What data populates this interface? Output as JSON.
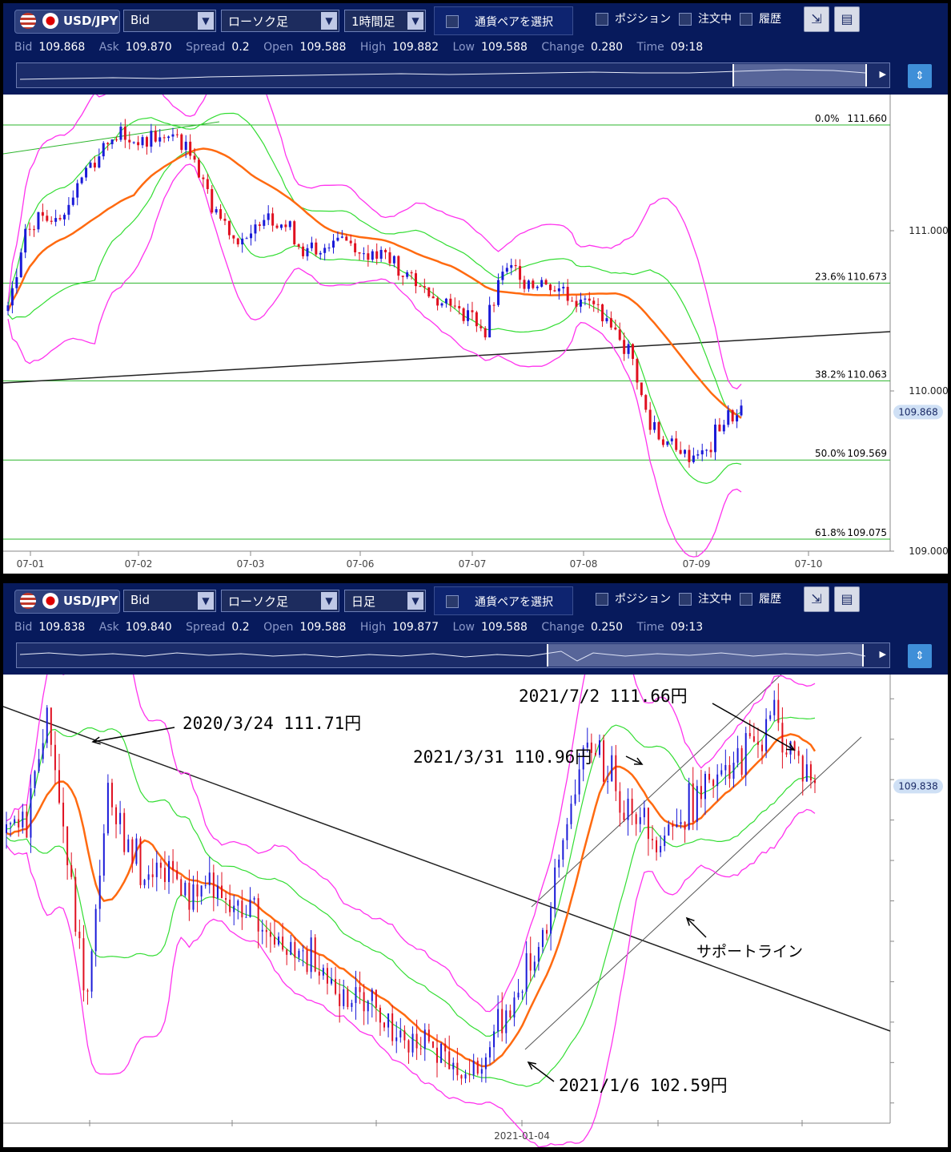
{
  "panels": [
    {
      "pair": "USD/JPY",
      "price_type": "Bid",
      "chart_type": "ローソク足",
      "timeframe": "1時間足",
      "pair_select_label": "通貨ペアを選択",
      "options": [
        "ポジション",
        "注文中",
        "履歴"
      ],
      "quote": {
        "bid_label": "Bid",
        "bid": "109.868",
        "ask_label": "Ask",
        "ask": "109.870",
        "spread_label": "Spread",
        "spread": "0.2",
        "open_label": "Open",
        "open": "109.588",
        "high_label": "High",
        "high": "109.882",
        "low_label": "Low",
        "low": "109.588",
        "change_label": "Change",
        "change": "0.280",
        "time_label": "Time",
        "time": "09:18"
      },
      "current_price_tag": "109.868"
    },
    {
      "pair": "USD/JPY",
      "price_type": "Bid",
      "chart_type": "ローソク足",
      "timeframe": "日足",
      "pair_select_label": "通貨ペアを選択",
      "options": [
        "ポジション",
        "注文中",
        "履歴"
      ],
      "quote": {
        "bid_label": "Bid",
        "bid": "109.838",
        "ask_label": "Ask",
        "ask": "109.840",
        "spread_label": "Spread",
        "spread": "0.2",
        "open_label": "Open",
        "open": "109.588",
        "high_label": "High",
        "high": "109.877",
        "low_label": "Low",
        "low": "109.588",
        "change_label": "Change",
        "change": "0.250",
        "time_label": "Time",
        "time": "09:13"
      },
      "current_price_tag": "109.838"
    }
  ],
  "chart_data": [
    {
      "type": "candlestick",
      "title": "USD/JPY 1時間足",
      "x_tick_labels": [
        "07-01",
        "07-02",
        "07-03",
        "07-06",
        "07-07",
        "07-08",
        "07-09",
        "07-10"
      ],
      "y_tick_labels": [
        "111.000",
        "110.000",
        "109.000"
      ],
      "ylim": [
        109.0,
        111.85
      ],
      "fibonacci_levels": [
        {
          "label": "0.0%",
          "value": 111.66
        },
        {
          "label": "23.6%",
          "value": 110.673
        },
        {
          "label": "38.2%",
          "value": 110.063
        },
        {
          "label": "50.0%",
          "value": 109.569
        },
        {
          "label": "61.8%",
          "value": 109.075
        }
      ],
      "fibonacci_value_text": [
        "111.660",
        "110.673",
        "110.063",
        "109.569",
        "109.075"
      ],
      "approx_close_path": [
        110.5,
        111.0,
        111.1,
        111.1,
        111.35,
        111.5,
        111.6,
        111.55,
        111.58,
        111.6,
        111.5,
        111.2,
        111.0,
        110.95,
        111.1,
        111.05,
        110.9,
        110.85,
        110.95,
        110.9,
        110.85,
        110.8,
        110.7,
        110.6,
        110.55,
        110.5,
        110.35,
        110.8,
        110.7,
        110.7,
        110.65,
        110.6,
        110.55,
        110.4,
        110.2,
        109.8,
        109.7,
        109.6,
        109.6,
        109.8,
        109.85
      ],
      "current_price": 109.868,
      "indicators": [
        "Bollinger Bands",
        "Moving Average"
      ],
      "grid": false
    },
    {
      "type": "candlestick",
      "title": "USD/JPY 日足",
      "x_tick_labels": [
        "2021-01-04"
      ],
      "current_price": 109.838,
      "annotations": [
        {
          "text": "2020/3/24 111.71円"
        },
        {
          "text": "2021/3/31 110.96円"
        },
        {
          "text": "2021/7/2 111.66円"
        },
        {
          "text": "2021/1/6 102.59円"
        },
        {
          "text": "サポートライン"
        }
      ],
      "approx_close_path": [
        108.5,
        109.0,
        111.71,
        108.0,
        104.5,
        109.5,
        108.5,
        107.5,
        107.8,
        107.2,
        107.5,
        106.8,
        107.0,
        106.0,
        105.5,
        105.7,
        105.0,
        104.8,
        104.5,
        104.0,
        103.5,
        103.4,
        103.0,
        102.59,
        103.5,
        104.5,
        105.5,
        107.0,
        109.5,
        110.96,
        110.0,
        109.2,
        108.6,
        109.0,
        109.5,
        109.8,
        110.2,
        111.0,
        111.66,
        110.5,
        109.838
      ],
      "indicators": [
        "Bollinger Bands",
        "Moving Average"
      ],
      "grid": false
    }
  ]
}
